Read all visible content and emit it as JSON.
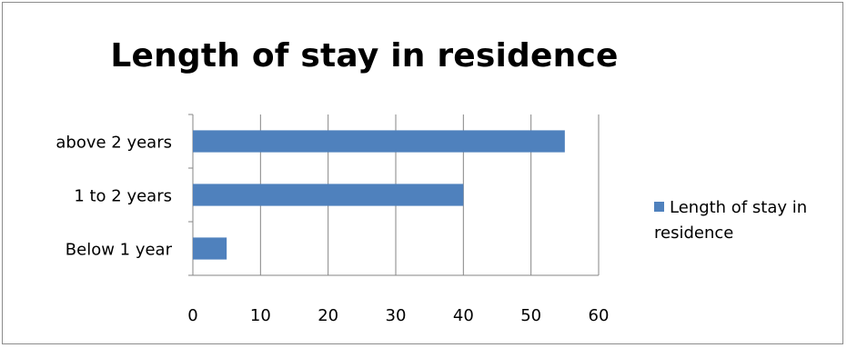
{
  "chart_data": {
    "type": "bar",
    "orientation": "horizontal",
    "title": "Length of stay in residence",
    "categories": [
      "Below 1 year",
      "1 to 2 years",
      "above 2 years"
    ],
    "series": [
      {
        "name": "Length of stay in residence",
        "values": [
          5,
          40,
          55
        ],
        "color": "#4f81bd"
      }
    ],
    "xlim": [
      0,
      60
    ],
    "x_ticks": [
      0,
      10,
      20,
      30,
      40,
      50,
      60
    ],
    "grid": true,
    "legend_position": "right"
  }
}
